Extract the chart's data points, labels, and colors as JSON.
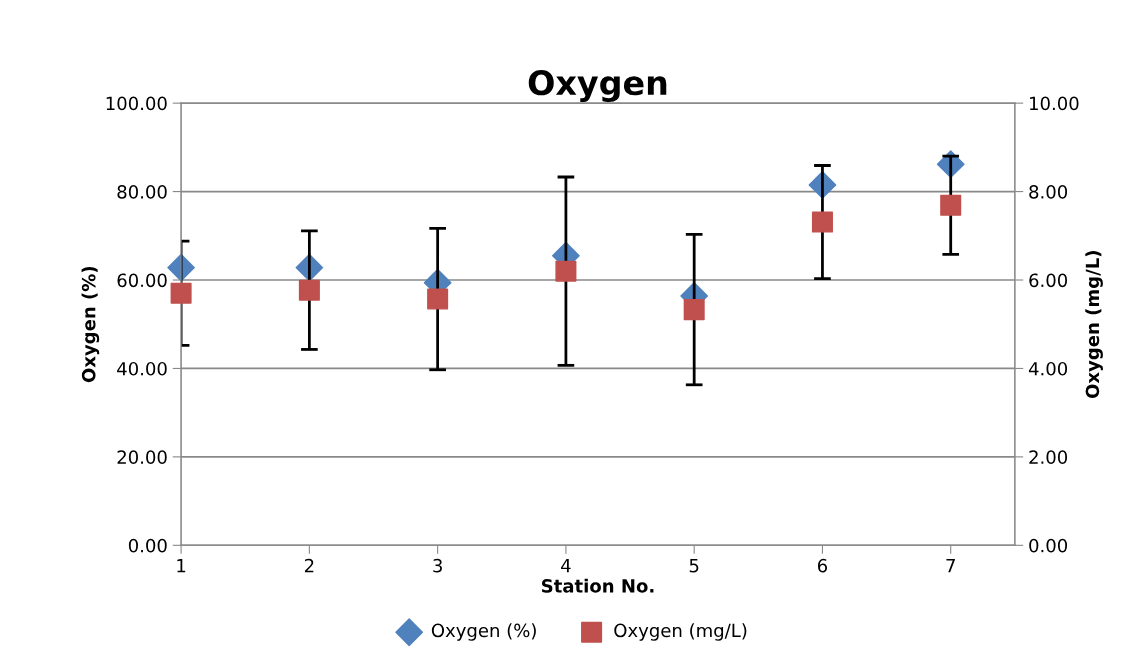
{
  "chart_data": {
    "type": "scatter",
    "title": "Oxygen",
    "xlabel": "Station No.",
    "ylabel": "Oxygen (%)",
    "y2label": "Oxygen (mg/L)",
    "xlim": [
      1,
      7.5
    ],
    "xticks": [
      1,
      2,
      3,
      4,
      5,
      6,
      7
    ],
    "ylim": [
      0,
      100
    ],
    "yticks": [
      {
        "value": 0,
        "label": "0.00"
      },
      {
        "value": 20,
        "label": "20.00"
      },
      {
        "value": 40,
        "label": "40.00"
      },
      {
        "value": 60,
        "label": "60.00"
      },
      {
        "value": 80,
        "label": "80.00"
      },
      {
        "value": 100,
        "label": "100.00"
      }
    ],
    "y2lim": [
      0,
      10
    ],
    "y2ticks": [
      {
        "value": 0,
        "label": "0.00"
      },
      {
        "value": 2,
        "label": "2.00"
      },
      {
        "value": 4,
        "label": "4.00"
      },
      {
        "value": 6,
        "label": "6.00"
      },
      {
        "value": 8,
        "label": "8.00"
      },
      {
        "value": 10,
        "label": "10.00"
      }
    ],
    "grid": "y",
    "legend": "bottom",
    "series": [
      {
        "name": "Oxygen (%)",
        "color": "#4f81bd",
        "marker": "diamond",
        "x": [
          1,
          2,
          3,
          4,
          5,
          6,
          7
        ],
        "values": [
          62.8,
          62.8,
          59.4,
          65.5,
          56.4,
          81.5,
          86.2
        ]
      },
      {
        "name": "Oxygen (mg/L)",
        "color": "#c0504d",
        "marker": "square",
        "axis": "y2",
        "x": [
          1,
          2,
          3,
          4,
          5,
          6,
          7
        ],
        "values": [
          5.7,
          5.77,
          5.57,
          6.2,
          5.33,
          7.31,
          7.69
        ],
        "errors": [
          1.18,
          1.34,
          1.6,
          2.13,
          1.7,
          1.28,
          1.11
        ]
      }
    ]
  }
}
